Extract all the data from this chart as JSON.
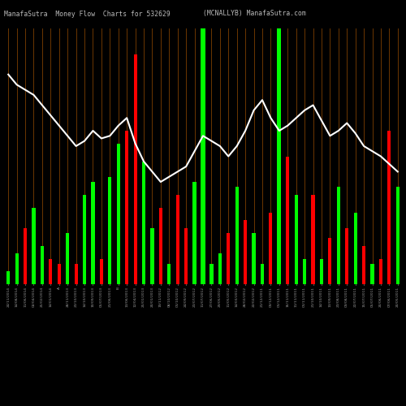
{
  "title_left": "ManafaSutra  Money Flow  Charts for 532629",
  "title_right": "(MCNALLYB) ManafaSutra.com",
  "background_color": "#000000",
  "bar_line_color": "#8B4500",
  "green_bar_color": "#00FF00",
  "red_bar_color": "#FF0000",
  "white_line_color": "#FFFFFF",
  "bar_colors": [
    "g",
    "g",
    "r",
    "g",
    "g",
    "r",
    "r",
    "g",
    "r",
    "g",
    "g",
    "r",
    "g",
    "g",
    "r",
    "r",
    "g",
    "g",
    "r",
    "g",
    "r",
    "r",
    "g",
    "r",
    "g",
    "g",
    "r",
    "g",
    "r",
    "g",
    "g",
    "r",
    "g",
    "r",
    "g",
    "g",
    "r",
    "g",
    "r",
    "g",
    "r",
    "g",
    "r",
    "g",
    "r",
    "r",
    "g"
  ],
  "bar_heights": [
    0.05,
    0.12,
    0.22,
    0.3,
    0.15,
    0.1,
    0.08,
    0.2,
    0.08,
    0.35,
    0.4,
    0.1,
    0.42,
    0.55,
    0.6,
    0.9,
    0.48,
    0.22,
    0.3,
    0.08,
    0.35,
    0.22,
    0.4,
    1.0,
    0.08,
    0.12,
    0.2,
    0.38,
    0.25,
    0.2,
    0.08,
    0.28,
    1.0,
    0.5,
    0.35,
    0.1,
    0.35,
    0.1,
    0.18,
    0.38,
    0.22,
    0.28,
    0.15,
    0.08,
    0.1,
    0.6,
    0.38
  ],
  "special_green_bars": [
    23,
    32
  ],
  "line_values": [
    0.82,
    0.78,
    0.76,
    0.74,
    0.7,
    0.66,
    0.62,
    0.58,
    0.54,
    0.56,
    0.6,
    0.57,
    0.58,
    0.62,
    0.65,
    0.55,
    0.48,
    0.44,
    0.4,
    0.42,
    0.44,
    0.46,
    0.52,
    0.58,
    0.56,
    0.54,
    0.5,
    0.54,
    0.6,
    0.68,
    0.72,
    0.65,
    0.6,
    0.62,
    0.65,
    0.68,
    0.7,
    0.64,
    0.58,
    0.6,
    0.63,
    0.59,
    0.54,
    0.52,
    0.5,
    0.47,
    0.44
  ],
  "labels": [
    "24/11/2014",
    "14/08/2014",
    "11/06/2014",
    "02/04/2014",
    "25/02/2014",
    "14/01/2014",
    "A",
    "28/11/2013",
    "23/10/2013",
    "14/10/2013",
    "10/09/2013",
    "05/07/2013",
    "21/06/2013",
    "B",
    "13/06/2013",
    "12/04/2013",
    "25/01/2013",
    "20/01/2013",
    "19/11/2012",
    "08/10/2012",
    "01/10/2012",
    "24/09/2012",
    "23/07/2012",
    "11/07/2012",
    "27/06/2012",
    "29/05/2012",
    "11/05/2012",
    "14/03/2012",
    "28/02/2012",
    "22/02/2012",
    "21/12/2011",
    "09/12/2011",
    "01/12/2011",
    "16/11/2011",
    "11/11/2011",
    "01/11/2011",
    "21/10/2011",
    "14/10/2011",
    "13/09/2011",
    "23/08/2011",
    "09/08/2011",
    "22/07/2011",
    "15/07/2011",
    "05/07/2011",
    "20/06/2011",
    "07/06/2011",
    "20/05/2011"
  ],
  "n_bars": 47,
  "figsize": [
    5.0,
    5.0
  ],
  "dpi": 100,
  "ylim": [
    0,
    1.0
  ]
}
